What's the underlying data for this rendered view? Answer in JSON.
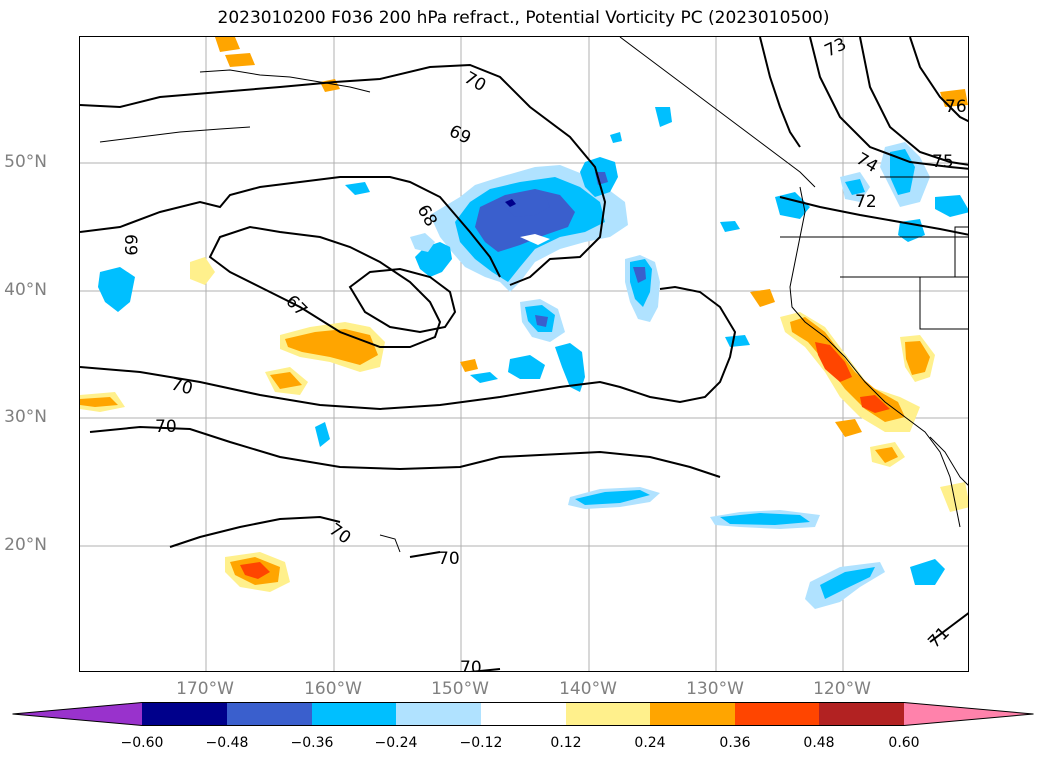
{
  "title": "2023010200 F036 200 hPa refract., Potential Vorticity PC (2023010500)",
  "lat_labels": [
    "50°N",
    "40°N",
    "30°N",
    "20°N"
  ],
  "lon_labels": [
    "170°W",
    "160°W",
    "150°W",
    "140°W",
    "130°W",
    "120°W"
  ],
  "contour_labels": [
    "70",
    "69",
    "68",
    "67",
    "69",
    "70",
    "70",
    "70",
    "70",
    "73",
    "74",
    "75",
    "76",
    "72",
    "71",
    "70"
  ],
  "colorbar": {
    "ticks": [
      "−0.60",
      "−0.48",
      "−0.36",
      "−0.24",
      "−0.12",
      "0.12",
      "0.24",
      "0.36",
      "0.48",
      "0.60"
    ],
    "colors": [
      "#9932cc",
      "#00008b",
      "#3a5fcd",
      "#00bfff",
      "#b0e2ff",
      "#ffffff",
      "#fff08c",
      "#ffa500",
      "#ff4500",
      "#b22222",
      "#ff82ab"
    ]
  }
}
